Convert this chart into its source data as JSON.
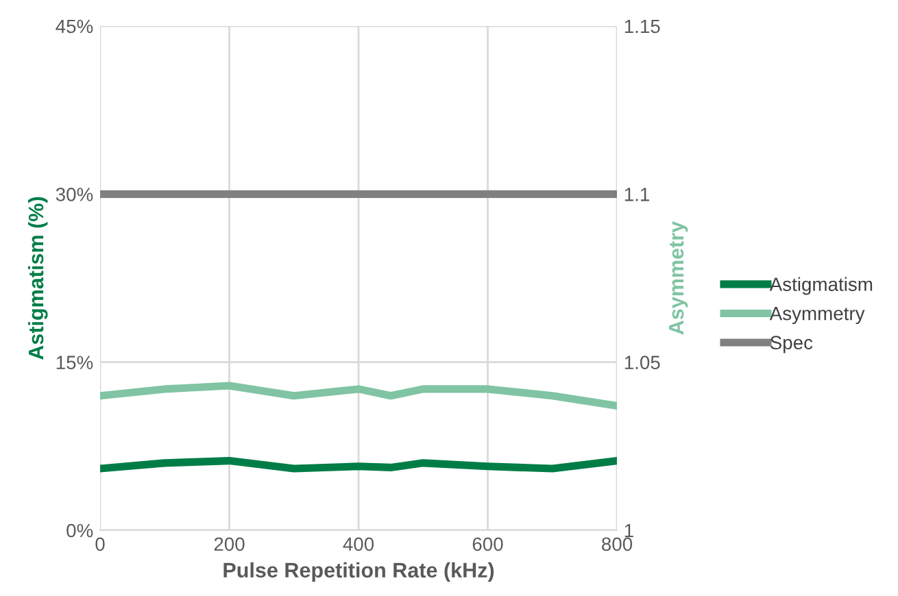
{
  "chart_data": {
    "type": "line",
    "xlabel": "Pulse Repetition Rate (kHz)",
    "ylabel": "Astigmatism (%)",
    "y2label": "Asymmetry",
    "x": [
      0,
      100,
      200,
      300,
      400,
      450,
      500,
      600,
      700,
      800
    ],
    "series": [
      {
        "name": "Astigmatism",
        "color": "#007d47",
        "values": [
          5.5,
          6.0,
          6.2,
          5.5,
          5.7,
          5.6,
          6.0,
          5.7,
          5.5,
          6.2
        ]
      },
      {
        "name": "Asymmetry",
        "color": "#80c4a3",
        "axis": "y2",
        "values": [
          1.04,
          1.042,
          1.043,
          1.04,
          1.042,
          1.04,
          1.042,
          1.042,
          1.04,
          1.037
        ]
      },
      {
        "name": "Spec",
        "color": "#808080",
        "x": [
          0,
          800
        ],
        "values": [
          30,
          30
        ]
      }
    ],
    "xlim": [
      0,
      800
    ],
    "xticks": [
      0,
      200,
      400,
      600,
      800
    ],
    "ylim": [
      0,
      45
    ],
    "yticks": [
      {
        "value": 0,
        "label": "0%"
      },
      {
        "value": 15,
        "label": "15%"
      },
      {
        "value": 30,
        "label": "30%"
      },
      {
        "value": 45,
        "label": "45%"
      }
    ],
    "y2lim": [
      1,
      1.15
    ],
    "y2ticks": [
      {
        "value": 1,
        "label": "1"
      },
      {
        "value": 1.05,
        "label": "1.05"
      },
      {
        "value": 1.1,
        "label": "1.1"
      },
      {
        "value": 1.15,
        "label": "1.15"
      }
    ],
    "grid": true,
    "legend": "right",
    "marker": "none",
    "line_style": "solid"
  }
}
